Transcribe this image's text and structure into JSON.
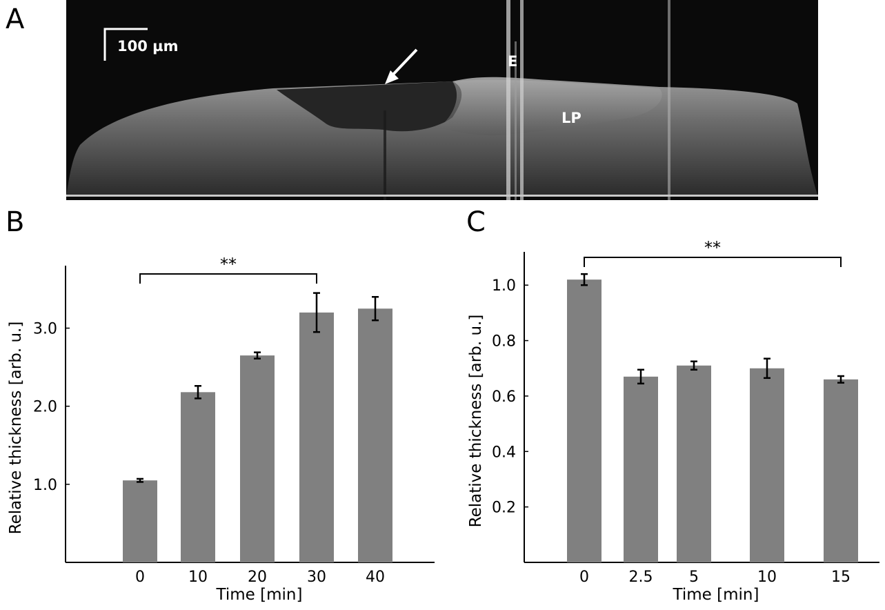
{
  "panels": {
    "a": {
      "letter": "A",
      "scale_bar_label": "100 µm",
      "label_e": "E",
      "label_lp": "LP",
      "arrow_icon": "arrow-icon"
    },
    "b": {
      "letter": "B"
    },
    "c": {
      "letter": "C"
    }
  },
  "colors": {
    "bar": "#808080",
    "axis": "#000000",
    "oct_background": "#0a0a0a",
    "oct_tissue": "#8a8a8a"
  },
  "chart_data": [
    {
      "id": "B",
      "type": "bar",
      "title": "",
      "xlabel": "Time  [min]",
      "ylabel": "Relative thickness [arb. u.]",
      "categories": [
        "0",
        "10",
        "20",
        "30",
        "40"
      ],
      "values": [
        1.05,
        2.18,
        2.65,
        3.2,
        3.25
      ],
      "errors": [
        0.02,
        0.08,
        0.04,
        0.25,
        0.15
      ],
      "y_ticks": [
        "1.0",
        "2.0",
        "3.0"
      ],
      "ylim": [
        0.0,
        3.8
      ],
      "significance": {
        "from": "0",
        "to": "30",
        "label": "**"
      }
    },
    {
      "id": "C",
      "type": "bar",
      "title": "",
      "xlabel": "Time  [min]",
      "ylabel": "Relative thickness [arb. u.]",
      "categories": [
        "0",
        "2.5",
        "5",
        "10",
        "15"
      ],
      "category_positions": [
        0,
        2.5,
        5,
        10,
        15
      ],
      "values": [
        1.02,
        0.67,
        0.71,
        0.7,
        0.66
      ],
      "errors": [
        0.02,
        0.025,
        0.015,
        0.035,
        0.012
      ],
      "y_ticks": [
        "0.2",
        "0.4",
        "0.6",
        "0.8",
        "1.0"
      ],
      "ylim": [
        0.0,
        1.12
      ],
      "significance": {
        "from": "0",
        "to": "15",
        "label": "**"
      }
    }
  ]
}
